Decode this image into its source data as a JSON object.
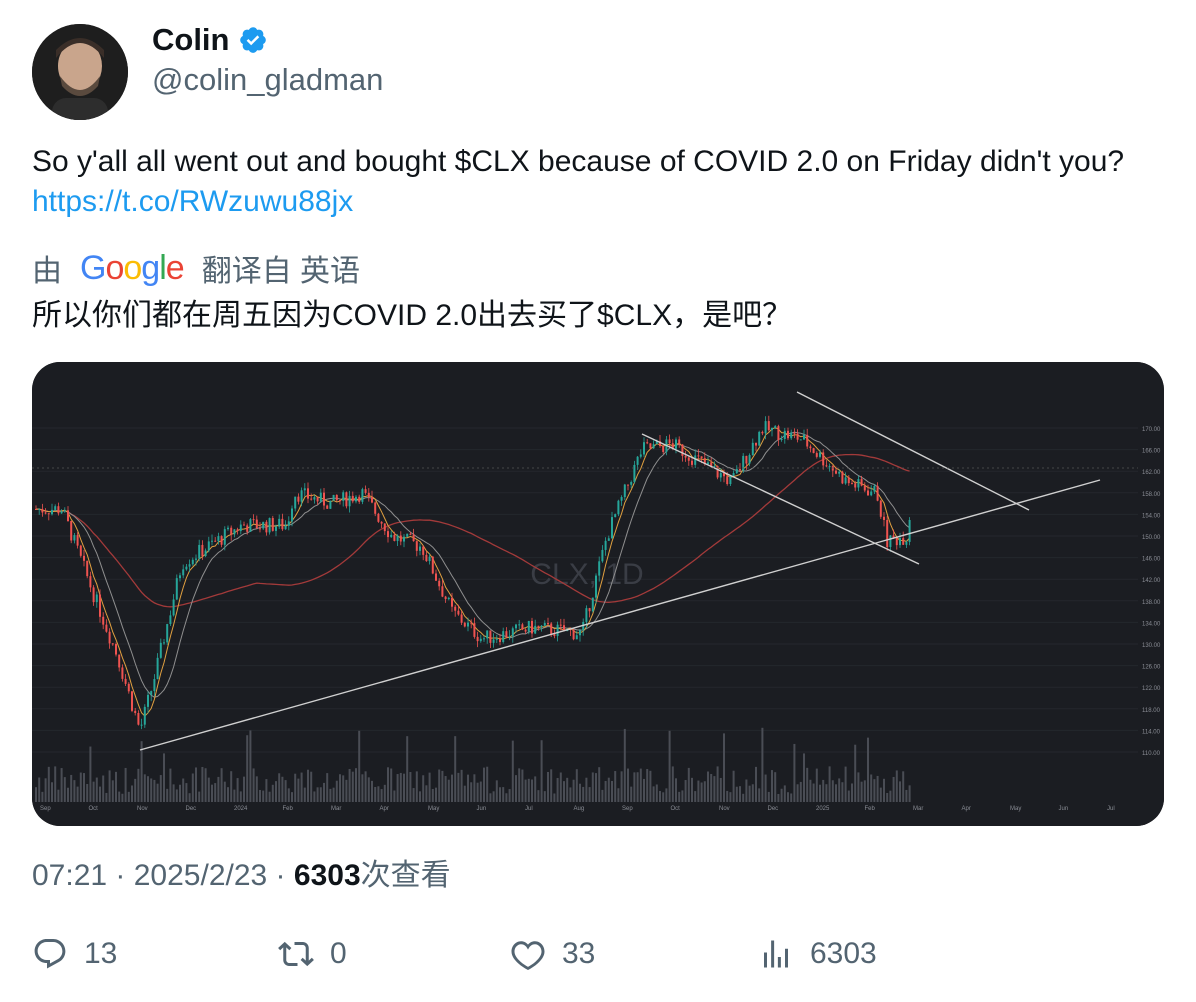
{
  "author": {
    "name": "Colin",
    "handle": "@colin_gladman",
    "verified_icon": "verified-badge-icon",
    "accent_color": "#1d9bf0"
  },
  "tweet": {
    "text": "So y'all all went out and bought $CLX because of COVID 2.0 on Friday didn't you? ",
    "link": "https://t.co/RWzuwu88jx"
  },
  "translation": {
    "by": "由",
    "provider": "Google",
    "source": "翻译自 英语",
    "text": "所以你们都在周五因为COVID 2.0出去买了$CLX，是吧？"
  },
  "chart_image": {
    "watermark": "CLX, 1D",
    "x_tick_labels": [
      "Sep",
      "Oct",
      "Nov",
      "Dec",
      "2024",
      "Feb",
      "Mar",
      "Apr",
      "May",
      "Jun",
      "Jul",
      "Aug",
      "Sep",
      "Oct",
      "Nov",
      "Dec",
      "2025",
      "Feb",
      "Mar",
      "Apr",
      "May",
      "Jun",
      "Jul"
    ],
    "y_tick_labels": [
      "170.00",
      "166.00",
      "162.00",
      "158.00",
      "154.00",
      "150.00",
      "146.00",
      "142.00",
      "138.00",
      "134.00",
      "130.00",
      "126.00",
      "122.00",
      "118.00",
      "114.00",
      "110.00"
    ]
  },
  "meta": {
    "time": "07:21",
    "sep1": " · ",
    "date": "2025/2/23",
    "sep2": " · ",
    "views": "6303",
    "views_label": "次查看"
  },
  "actions": {
    "replies": "13",
    "retweets": "0",
    "likes": "33",
    "views": "6303"
  }
}
